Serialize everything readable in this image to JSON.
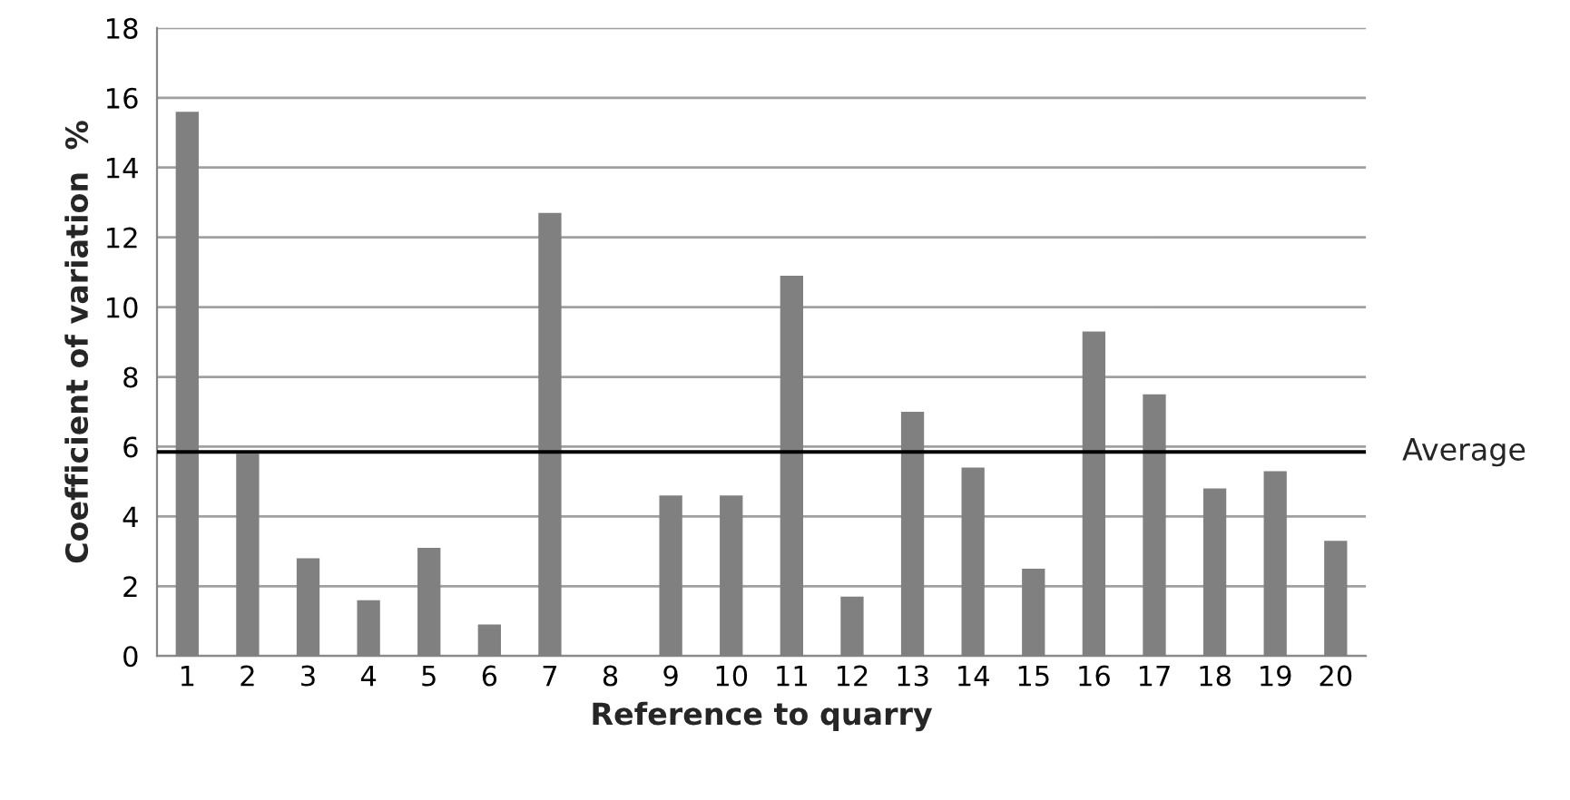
{
  "chart_data": {
    "type": "bar",
    "xlabel": "Reference to quarry",
    "ylabel": "Coefficient of variation  %",
    "categories": [
      "1",
      "2",
      "3",
      "4",
      "5",
      "6",
      "7",
      "8",
      "9",
      "10",
      "11",
      "12",
      "13",
      "14",
      "15",
      "16",
      "17",
      "18",
      "19",
      "20"
    ],
    "values": [
      15.6,
      5.8,
      2.8,
      1.6,
      3.1,
      0.9,
      12.7,
      null,
      4.6,
      4.6,
      10.9,
      1.7,
      7.0,
      5.4,
      2.5,
      9.3,
      7.5,
      4.8,
      5.3,
      3.3
    ],
    "color": "#808080",
    "ylim": [
      0,
      18
    ],
    "yticks": [
      0,
      2,
      4,
      6,
      8,
      10,
      12,
      14,
      16,
      18
    ],
    "grid": "y",
    "ref_lines": [
      {
        "axis": "y",
        "value": 5.85,
        "label": "Average",
        "color": "#000000"
      }
    ]
  }
}
